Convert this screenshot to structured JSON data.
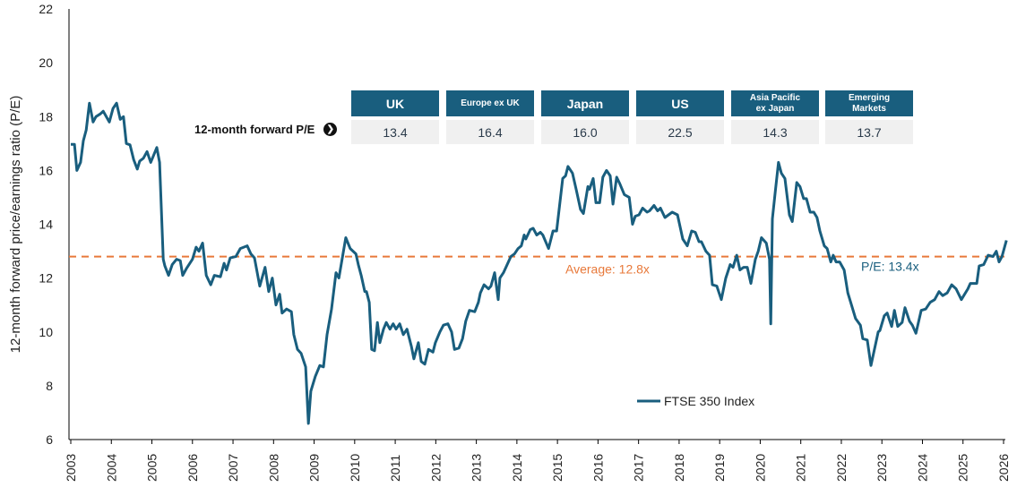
{
  "chart_data": {
    "type": "line",
    "ylabel": "12-month forward price/earnings ratio (P/E)",
    "xlabel": "",
    "ylim": [
      6,
      22
    ],
    "yticks": [
      6,
      8,
      10,
      12,
      14,
      16,
      18,
      20,
      22
    ],
    "xlim": [
      2003,
      2026
    ],
    "xticks": [
      "2003",
      "2004",
      "2005",
      "2006",
      "2007",
      "2008",
      "2009",
      "2010",
      "2011",
      "2012",
      "2013",
      "2014",
      "2015",
      "2016",
      "2017",
      "2018",
      "2019",
      "2020",
      "2021",
      "2022",
      "2023",
      "2024",
      "2025",
      "2026"
    ],
    "grid": false,
    "legend_position": "bottom-center",
    "series": [
      {
        "name": "FTSE 350 Index",
        "color": "#195e7e",
        "points": [
          [
            2003.0,
            16.97
          ],
          [
            2003.09,
            16.97
          ],
          [
            2003.15,
            16.0
          ],
          [
            2003.24,
            16.3
          ],
          [
            2003.31,
            17.1
          ],
          [
            2003.38,
            17.5
          ],
          [
            2003.46,
            18.5
          ],
          [
            2003.55,
            17.8
          ],
          [
            2003.62,
            18.0
          ],
          [
            2003.73,
            18.1
          ],
          [
            2003.8,
            18.2
          ],
          [
            2003.95,
            17.8
          ],
          [
            2004.04,
            18.3
          ],
          [
            2004.13,
            18.5
          ],
          [
            2004.22,
            17.9
          ],
          [
            2004.3,
            18.0
          ],
          [
            2004.37,
            17.0
          ],
          [
            2004.46,
            16.95
          ],
          [
            2004.55,
            16.4
          ],
          [
            2004.64,
            16.05
          ],
          [
            2004.7,
            16.35
          ],
          [
            2004.79,
            16.45
          ],
          [
            2004.88,
            16.7
          ],
          [
            2004.97,
            16.3
          ],
          [
            2005.12,
            16.85
          ],
          [
            2005.19,
            16.3
          ],
          [
            2005.28,
            12.7
          ],
          [
            2005.32,
            12.45
          ],
          [
            2005.41,
            12.1
          ],
          [
            2005.5,
            12.5
          ],
          [
            2005.61,
            12.7
          ],
          [
            2005.7,
            12.65
          ],
          [
            2005.76,
            12.1
          ],
          [
            2005.85,
            12.35
          ],
          [
            2006.0,
            12.7
          ],
          [
            2006.09,
            13.15
          ],
          [
            2006.16,
            13.0
          ],
          [
            2006.25,
            13.3
          ],
          [
            2006.34,
            12.1
          ],
          [
            2006.45,
            11.75
          ],
          [
            2006.54,
            12.1
          ],
          [
            2006.69,
            12.05
          ],
          [
            2006.78,
            12.55
          ],
          [
            2006.84,
            12.3
          ],
          [
            2006.93,
            12.75
          ],
          [
            2007.07,
            12.8
          ],
          [
            2007.18,
            13.1
          ],
          [
            2007.35,
            13.2
          ],
          [
            2007.44,
            12.9
          ],
          [
            2007.53,
            12.75
          ],
          [
            2007.66,
            11.7
          ],
          [
            2007.79,
            12.4
          ],
          [
            2007.88,
            11.5
          ],
          [
            2007.97,
            12.0
          ],
          [
            2008.06,
            11.0
          ],
          [
            2008.15,
            11.4
          ],
          [
            2008.21,
            10.7
          ],
          [
            2008.32,
            10.85
          ],
          [
            2008.44,
            10.75
          ],
          [
            2008.5,
            9.9
          ],
          [
            2008.59,
            9.35
          ],
          [
            2008.68,
            9.2
          ],
          [
            2008.79,
            8.7
          ],
          [
            2008.86,
            6.6
          ],
          [
            2008.92,
            7.8
          ],
          [
            2009.03,
            8.35
          ],
          [
            2009.14,
            8.75
          ],
          [
            2009.23,
            8.7
          ],
          [
            2009.32,
            9.9
          ],
          [
            2009.43,
            10.85
          ],
          [
            2009.54,
            12.2
          ],
          [
            2009.61,
            12.0
          ],
          [
            2009.78,
            13.5
          ],
          [
            2009.89,
            13.1
          ],
          [
            2010.03,
            12.9
          ],
          [
            2010.09,
            12.5
          ],
          [
            2010.16,
            12.1
          ],
          [
            2010.25,
            11.5
          ],
          [
            2010.29,
            11.5
          ],
          [
            2010.36,
            11.1
          ],
          [
            2010.42,
            9.35
          ],
          [
            2010.49,
            9.3
          ],
          [
            2010.56,
            10.35
          ],
          [
            2010.62,
            9.6
          ],
          [
            2010.71,
            10.1
          ],
          [
            2010.78,
            10.35
          ],
          [
            2010.87,
            10.1
          ],
          [
            2010.95,
            10.3
          ],
          [
            2011.02,
            10.1
          ],
          [
            2011.11,
            10.3
          ],
          [
            2011.2,
            9.9
          ],
          [
            2011.29,
            10.1
          ],
          [
            2011.4,
            9.45
          ],
          [
            2011.46,
            9.0
          ],
          [
            2011.57,
            9.6
          ],
          [
            2011.64,
            8.9
          ],
          [
            2011.73,
            8.8
          ],
          [
            2011.82,
            9.35
          ],
          [
            2011.93,
            9.25
          ],
          [
            2011.99,
            9.6
          ],
          [
            2012.1,
            10.0
          ],
          [
            2012.19,
            10.25
          ],
          [
            2012.3,
            10.3
          ],
          [
            2012.39,
            10.0
          ],
          [
            2012.46,
            9.35
          ],
          [
            2012.57,
            9.4
          ],
          [
            2012.66,
            9.75
          ],
          [
            2012.74,
            10.4
          ],
          [
            2012.83,
            10.8
          ],
          [
            2012.96,
            10.75
          ],
          [
            2013.05,
            11.1
          ],
          [
            2013.1,
            11.45
          ],
          [
            2013.19,
            11.75
          ],
          [
            2013.3,
            11.6
          ],
          [
            2013.36,
            11.7
          ],
          [
            2013.45,
            12.2
          ],
          [
            2013.54,
            11.2
          ],
          [
            2013.58,
            12.0
          ],
          [
            2013.67,
            12.2
          ],
          [
            2013.76,
            12.5
          ],
          [
            2013.85,
            12.8
          ],
          [
            2013.94,
            12.9
          ],
          [
            2014.03,
            13.1
          ],
          [
            2014.11,
            13.2
          ],
          [
            2014.18,
            13.6
          ],
          [
            2014.22,
            13.45
          ],
          [
            2014.33,
            13.8
          ],
          [
            2014.4,
            13.85
          ],
          [
            2014.49,
            13.6
          ],
          [
            2014.58,
            13.7
          ],
          [
            2014.64,
            13.6
          ],
          [
            2014.78,
            13.1
          ],
          [
            2014.89,
            13.75
          ],
          [
            2014.98,
            13.75
          ],
          [
            2015.13,
            15.7
          ],
          [
            2015.2,
            15.8
          ],
          [
            2015.26,
            16.15
          ],
          [
            2015.37,
            15.9
          ],
          [
            2015.46,
            15.3
          ],
          [
            2015.57,
            14.55
          ],
          [
            2015.64,
            14.4
          ],
          [
            2015.75,
            15.4
          ],
          [
            2015.79,
            15.3
          ],
          [
            2015.88,
            15.7
          ],
          [
            2015.95,
            14.8
          ],
          [
            2016.04,
            14.8
          ],
          [
            2016.12,
            15.75
          ],
          [
            2016.21,
            16.0
          ],
          [
            2016.3,
            15.8
          ],
          [
            2016.37,
            14.75
          ],
          [
            2016.46,
            15.75
          ],
          [
            2016.54,
            15.5
          ],
          [
            2016.65,
            15.1
          ],
          [
            2016.77,
            15.0
          ],
          [
            2016.85,
            14.0
          ],
          [
            2016.92,
            14.3
          ],
          [
            2017.01,
            14.35
          ],
          [
            2017.1,
            14.6
          ],
          [
            2017.21,
            14.45
          ],
          [
            2017.27,
            14.5
          ],
          [
            2017.38,
            14.7
          ],
          [
            2017.47,
            14.5
          ],
          [
            2017.54,
            14.6
          ],
          [
            2017.65,
            14.25
          ],
          [
            2017.74,
            14.35
          ],
          [
            2017.83,
            14.45
          ],
          [
            2017.96,
            14.35
          ],
          [
            2018.09,
            13.45
          ],
          [
            2018.2,
            13.2
          ],
          [
            2018.31,
            13.75
          ],
          [
            2018.4,
            13.7
          ],
          [
            2018.49,
            13.35
          ],
          [
            2018.55,
            13.35
          ],
          [
            2018.66,
            13.0
          ],
          [
            2018.75,
            12.85
          ],
          [
            2018.82,
            11.75
          ],
          [
            2018.93,
            11.7
          ],
          [
            2019.04,
            11.2
          ],
          [
            2019.15,
            12.0
          ],
          [
            2019.26,
            12.5
          ],
          [
            2019.33,
            12.4
          ],
          [
            2019.42,
            12.85
          ],
          [
            2019.5,
            12.3
          ],
          [
            2019.59,
            12.4
          ],
          [
            2019.68,
            12.4
          ],
          [
            2019.77,
            11.8
          ],
          [
            2019.88,
            12.7
          ],
          [
            2019.95,
            13.0
          ],
          [
            2020.03,
            13.5
          ],
          [
            2020.15,
            13.3
          ],
          [
            2020.23,
            12.7
          ],
          [
            2020.26,
            10.3
          ],
          [
            2020.3,
            14.2
          ],
          [
            2020.37,
            15.2
          ],
          [
            2020.45,
            16.3
          ],
          [
            2020.52,
            15.9
          ],
          [
            2020.61,
            15.7
          ],
          [
            2020.72,
            14.35
          ],
          [
            2020.79,
            14.1
          ],
          [
            2020.9,
            15.55
          ],
          [
            2020.98,
            15.4
          ],
          [
            2021.07,
            14.95
          ],
          [
            2021.14,
            14.95
          ],
          [
            2021.23,
            14.45
          ],
          [
            2021.32,
            14.45
          ],
          [
            2021.4,
            14.25
          ],
          [
            2021.47,
            13.75
          ],
          [
            2021.58,
            13.2
          ],
          [
            2021.65,
            13.1
          ],
          [
            2021.74,
            12.6
          ],
          [
            2021.8,
            12.85
          ],
          [
            2021.87,
            12.6
          ],
          [
            2021.96,
            12.6
          ],
          [
            2022.07,
            12.3
          ],
          [
            2022.16,
            11.45
          ],
          [
            2022.27,
            10.9
          ],
          [
            2022.35,
            10.5
          ],
          [
            2022.47,
            10.25
          ],
          [
            2022.53,
            9.75
          ],
          [
            2022.64,
            9.7
          ],
          [
            2022.73,
            8.75
          ],
          [
            2022.91,
            10.0
          ],
          [
            2022.95,
            10.05
          ],
          [
            2023.06,
            10.6
          ],
          [
            2023.13,
            10.7
          ],
          [
            2023.24,
            10.2
          ],
          [
            2023.31,
            10.8
          ],
          [
            2023.39,
            10.2
          ],
          [
            2023.5,
            10.35
          ],
          [
            2023.57,
            10.9
          ],
          [
            2023.68,
            10.4
          ],
          [
            2023.75,
            10.25
          ],
          [
            2023.84,
            9.95
          ],
          [
            2023.97,
            10.8
          ],
          [
            2024.08,
            10.85
          ],
          [
            2024.19,
            11.1
          ],
          [
            2024.3,
            11.2
          ],
          [
            2024.41,
            11.5
          ],
          [
            2024.5,
            11.35
          ],
          [
            2024.61,
            11.45
          ],
          [
            2024.72,
            11.75
          ],
          [
            2024.83,
            11.6
          ],
          [
            2024.96,
            11.2
          ],
          [
            2025.12,
            11.6
          ],
          [
            2025.18,
            11.8
          ],
          [
            2025.34,
            11.8
          ],
          [
            2025.4,
            12.45
          ],
          [
            2025.51,
            12.5
          ],
          [
            2025.62,
            12.85
          ],
          [
            2025.74,
            12.8
          ],
          [
            2025.82,
            13.0
          ],
          [
            2025.89,
            12.6
          ],
          [
            2025.96,
            12.8
          ],
          [
            2026.07,
            13.4
          ]
        ]
      }
    ],
    "average": {
      "value": 12.8,
      "label": "Average: 12.8x",
      "color": "#e8793a"
    },
    "latest_annotation": "P/E: 13.4x"
  },
  "table": {
    "row_label": "12-month forward P/E",
    "columns": [
      {
        "header": "UK",
        "value": "13.4"
      },
      {
        "header": "Europe ex UK",
        "value": "16.4"
      },
      {
        "header": "Japan",
        "value": "16.0"
      },
      {
        "header": "US",
        "value": "22.5"
      },
      {
        "header": "Asia Pacific ex Japan",
        "value": "14.3"
      },
      {
        "header": "Emerging Markets",
        "value": "13.7"
      }
    ],
    "header_color": "#195e7e"
  }
}
